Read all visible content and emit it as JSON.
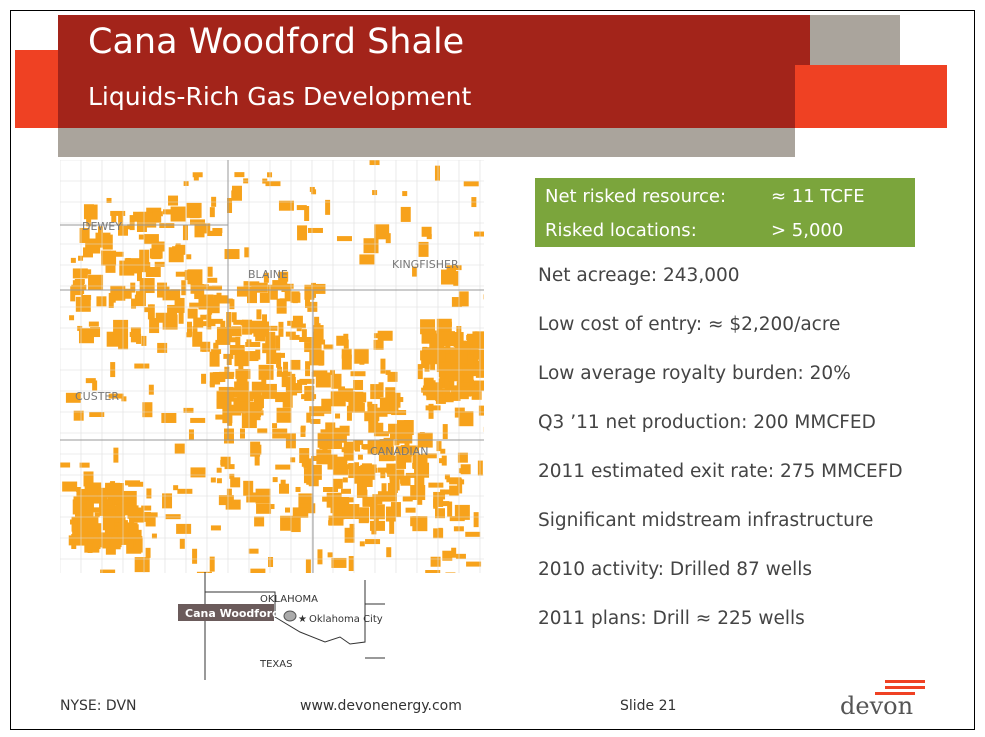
{
  "header": {
    "title": "Cana Woodford Shale",
    "subtitle": "Liquids-Rich Gas Development"
  },
  "highlights": [
    {
      "label": "Net risked resource:",
      "value": "≈ 11 TCFE"
    },
    {
      "label": "Risked locations:",
      "value": "> 5,000"
    }
  ],
  "bullets": [
    "Net acreage: 243,000",
    "Low cost of entry: ≈ $2,200/acre",
    "Low average royalty burden: 20%",
    "Q3 ’11 net production: 200 MMCFED",
    "2011 estimated exit rate: 275 MMCEFD",
    "Significant midstream infrastructure",
    "2010 activity: Drilled 87 wells",
    "2011 plans: Drill ≈ 225 wells"
  ],
  "map": {
    "counties": [
      "DEWEY",
      "BLAINE",
      "KINGFISHER",
      "CUSTER",
      "CANADIAN"
    ]
  },
  "inset": {
    "state": "OKLAHOMA",
    "play": "Cana Woodford",
    "city": "Oklahoma City",
    "neighbor": "TEXAS"
  },
  "footer": {
    "ticker": "NYSE: DVN",
    "url": "www.devonenergy.com",
    "slide": "Slide 21",
    "logo": "devon"
  }
}
